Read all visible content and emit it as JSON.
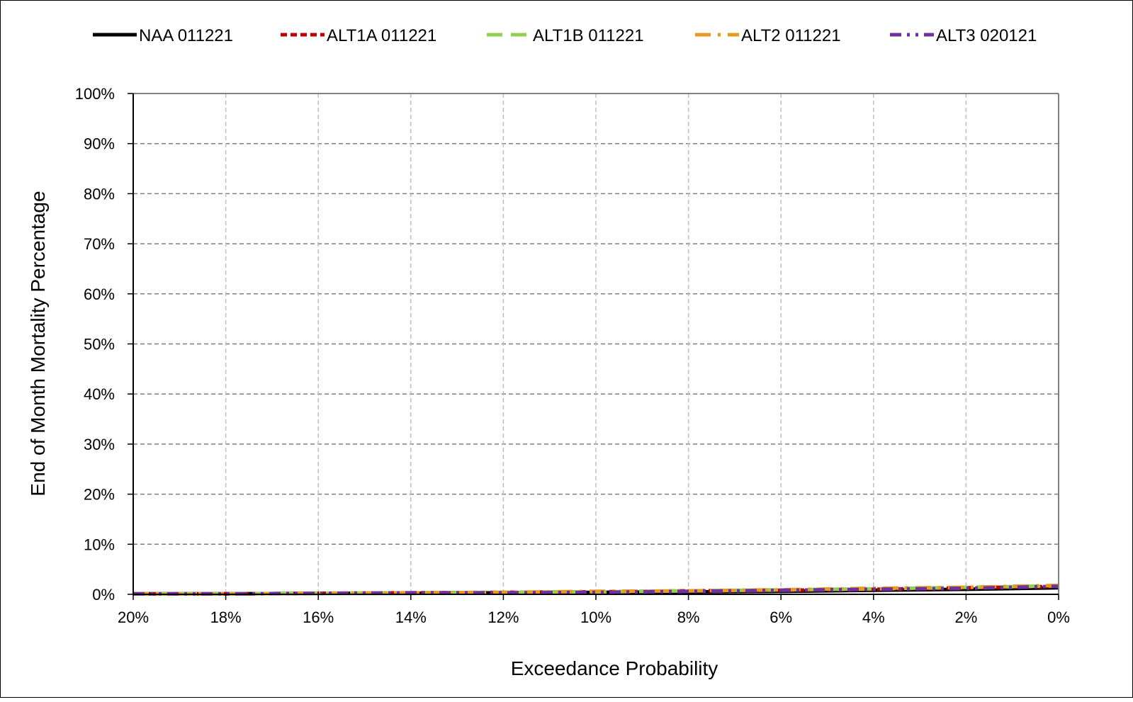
{
  "chart_data": {
    "type": "line",
    "title": "",
    "xlabel": "Exceedance Probability",
    "ylabel": "End of Month Mortality Percentage",
    "xlim": [
      20,
      0
    ],
    "ylim": [
      0,
      100
    ],
    "x_reversed": true,
    "x_ticks": [
      20,
      18,
      16,
      14,
      12,
      10,
      8,
      6,
      4,
      2,
      0
    ],
    "x_tick_labels": [
      "20%",
      "18%",
      "16%",
      "14%",
      "12%",
      "10%",
      "8%",
      "6%",
      "4%",
      "2%",
      "0%"
    ],
    "y_ticks": [
      0,
      10,
      20,
      30,
      40,
      50,
      60,
      70,
      80,
      90,
      100
    ],
    "y_tick_labels": [
      "0%",
      "10%",
      "20%",
      "30%",
      "40%",
      "50%",
      "60%",
      "70%",
      "80%",
      "90%",
      "100%"
    ],
    "grid": true,
    "legend_position": "top",
    "x": [
      20,
      18,
      16,
      14,
      12,
      10,
      8,
      6,
      4,
      2,
      0
    ],
    "series": [
      {
        "name": "NAA 011221",
        "color": "#000000",
        "dash": "solid",
        "values": [
          0.1,
          0.1,
          0.2,
          0.2,
          0.3,
          0.4,
          0.5,
          0.6,
          0.8,
          1.0,
          1.3
        ]
      },
      {
        "name": "ALT1A 011221",
        "color": "#c00000",
        "dash": "dash",
        "values": [
          0.1,
          0.1,
          0.2,
          0.3,
          0.4,
          0.5,
          0.7,
          0.8,
          1.0,
          1.3,
          1.6
        ]
      },
      {
        "name": "ALT1B 011221",
        "color": "#92d050",
        "dash": "longdash",
        "values": [
          0.1,
          0.1,
          0.2,
          0.3,
          0.4,
          0.5,
          0.7,
          0.9,
          1.1,
          1.4,
          1.7
        ]
      },
      {
        "name": "ALT2 011221",
        "color": "#e69a1e",
        "dash": "dashdot",
        "values": [
          0.1,
          0.1,
          0.2,
          0.3,
          0.4,
          0.6,
          0.7,
          0.9,
          1.2,
          1.4,
          1.8
        ]
      },
      {
        "name": "ALT3 020121",
        "color": "#7030a0",
        "dash": "dashdotdot",
        "values": [
          0.1,
          0.1,
          0.2,
          0.3,
          0.3,
          0.4,
          0.6,
          0.8,
          1.0,
          1.2,
          1.6
        ]
      }
    ]
  }
}
